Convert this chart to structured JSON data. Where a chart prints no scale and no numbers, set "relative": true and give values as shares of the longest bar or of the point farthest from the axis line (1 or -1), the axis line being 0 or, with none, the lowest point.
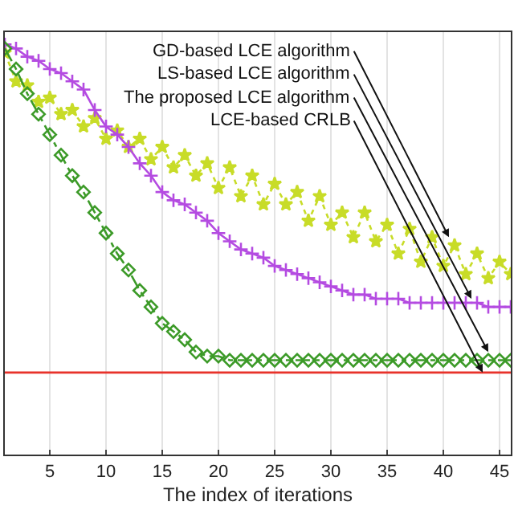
{
  "chart_data": {
    "type": "line",
    "relative": true,
    "xlabel": "The index of iterations",
    "x": [
      1,
      2,
      3,
      4,
      5,
      6,
      7,
      8,
      9,
      10,
      11,
      12,
      13,
      14,
      15,
      16,
      17,
      18,
      19,
      20,
      21,
      22,
      23,
      24,
      25,
      26,
      27,
      28,
      29,
      30,
      31,
      32,
      33,
      34,
      35,
      36,
      37,
      38,
      39,
      40,
      41,
      42,
      43,
      44,
      45,
      46
    ],
    "xlim": [
      1,
      46
    ],
    "xticks": [
      5,
      10,
      15,
      20,
      25,
      30,
      35,
      40,
      45
    ],
    "grid": "x",
    "series": [
      {
        "color": "#c8dc28",
        "marker": "star",
        "line_style": "dotted",
        "values": [
          0.98,
          0.91,
          0.9,
          0.86,
          0.87,
          0.83,
          0.84,
          0.8,
          0.82,
          0.77,
          0.79,
          0.75,
          0.77,
          0.72,
          0.75,
          0.7,
          0.73,
          0.68,
          0.71,
          0.65,
          0.7,
          0.63,
          0.68,
          0.61,
          0.66,
          0.61,
          0.64,
          0.57,
          0.63,
          0.56,
          0.59,
          0.53,
          0.59,
          0.52,
          0.56,
          0.49,
          0.55,
          0.47,
          0.53,
          0.46,
          0.51,
          0.44,
          0.49,
          0.43,
          0.47,
          0.44
        ]
      },
      {
        "color": "#b44be1",
        "marker": "cross",
        "line_style": "solid",
        "values": [
          1,
          0.99,
          0.97,
          0.96,
          0.94,
          0.93,
          0.91,
          0.89,
          0.84,
          0.8,
          0.78,
          0.75,
          0.71,
          0.68,
          0.64,
          0.62,
          0.61,
          0.59,
          0.57,
          0.54,
          0.52,
          0.5,
          0.49,
          0.48,
          0.46,
          0.45,
          0.44,
          0.43,
          0.42,
          0.41,
          0.4,
          0.39,
          0.39,
          0.38,
          0.38,
          0.38,
          0.37,
          0.37,
          0.37,
          0.37,
          0.37,
          0.37,
          0.37,
          0.36,
          0.36,
          0.36
        ]
      },
      {
        "color": "#3c9a28",
        "marker": "diamond",
        "line_style": "dashed",
        "values": [
          0.99,
          0.94,
          0.88,
          0.83,
          0.78,
          0.73,
          0.68,
          0.64,
          0.59,
          0.54,
          0.49,
          0.45,
          0.4,
          0.36,
          0.32,
          0.3,
          0.28,
          0.25,
          0.24,
          0.24,
          0.23,
          0.23,
          0.23,
          0.23,
          0.23,
          0.23,
          0.23,
          0.23,
          0.23,
          0.23,
          0.23,
          0.23,
          0.23,
          0.23,
          0.23,
          0.23,
          0.23,
          0.23,
          0.23,
          0.23,
          0.23,
          0.23,
          0.23,
          0.23,
          0.23,
          0.23
        ]
      },
      {
        "color": "#e8322a",
        "marker": "none",
        "line_style": "solid",
        "x": [
          1,
          46
        ],
        "values": [
          0.2,
          0.2
        ]
      }
    ],
    "annotations": [
      {
        "text": "GD-based LCE algorithm",
        "x": 40.5,
        "y": 0.53
      },
      {
        "text": "LS-based LCE algorithm",
        "x": 42.5,
        "y": 0.38
      },
      {
        "text": "The proposed LCE algorithm",
        "x": 44,
        "y": 0.25
      },
      {
        "text": "LCE-based CRLB",
        "x": 43.5,
        "y": 0.2
      }
    ]
  }
}
